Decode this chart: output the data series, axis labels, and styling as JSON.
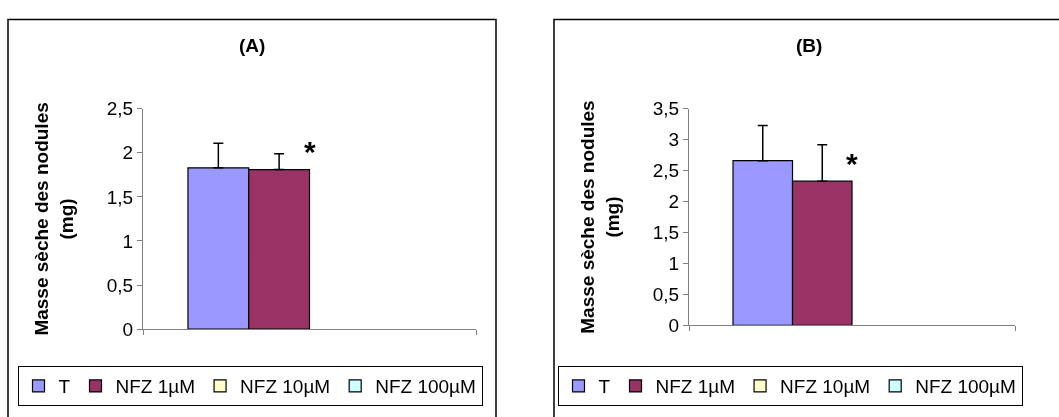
{
  "chart_data": [
    {
      "type": "bar",
      "title": "(A)",
      "ylabel": "Masse sèche des nodules\n(mg)",
      "categories": [
        null
      ],
      "series": [
        {
          "name": "T",
          "color": "#9999ff",
          "values": [
            1.83
          ],
          "errors": [
            [
              1.83,
              2.11
            ]
          ]
        },
        {
          "name": "NFZ 1µM",
          "color": "#993366",
          "values": [
            1.81
          ],
          "errors": [
            [
              1.81,
              1.99
            ]
          ]
        },
        {
          "name": "NFZ 10µM",
          "color": "#ffffcc",
          "values": [
            null
          ]
        },
        {
          "name": "NFZ 100µM",
          "color": "#ccffff",
          "values": [
            null
          ]
        }
      ],
      "ylim": [
        0,
        2.5
      ],
      "yticks": [
        0,
        {
          "value": 0.5,
          "label": "0,5"
        },
        1,
        {
          "value": 1.5,
          "label": "1,5"
        },
        2,
        {
          "value": 2.5,
          "label": "2,5"
        }
      ],
      "legend": "bottom",
      "annotations": [
        "*"
      ]
    },
    {
      "type": "bar",
      "title": "(B)",
      "ylabel": "Masse sèche des nodules\n(mg)",
      "categories": [
        null
      ],
      "series": [
        {
          "name": "T",
          "color": "#9999ff",
          "values": [
            2.66
          ],
          "errors": [
            [
              2.66,
              3.23
            ]
          ]
        },
        {
          "name": "NFZ 1µM",
          "color": "#993366",
          "values": [
            2.33
          ],
          "errors": [
            [
              2.33,
              2.92
            ]
          ]
        },
        {
          "name": "NFZ 10µM",
          "color": "#ffffcc",
          "values": [
            null
          ]
        },
        {
          "name": "NFZ 100µM",
          "color": "#ccffff",
          "values": [
            null
          ]
        }
      ],
      "ylim": [
        0,
        3.5
      ],
      "yticks": [
        0,
        {
          "value": 0.5,
          "label": "0,5"
        },
        1,
        {
          "value": 1.5,
          "label": "1,5"
        },
        2,
        {
          "value": 2.5,
          "label": "2,5"
        },
        3,
        {
          "value": 3.5,
          "label": "3,5"
        }
      ],
      "legend": "bottom",
      "annotations": [
        "*"
      ]
    }
  ]
}
